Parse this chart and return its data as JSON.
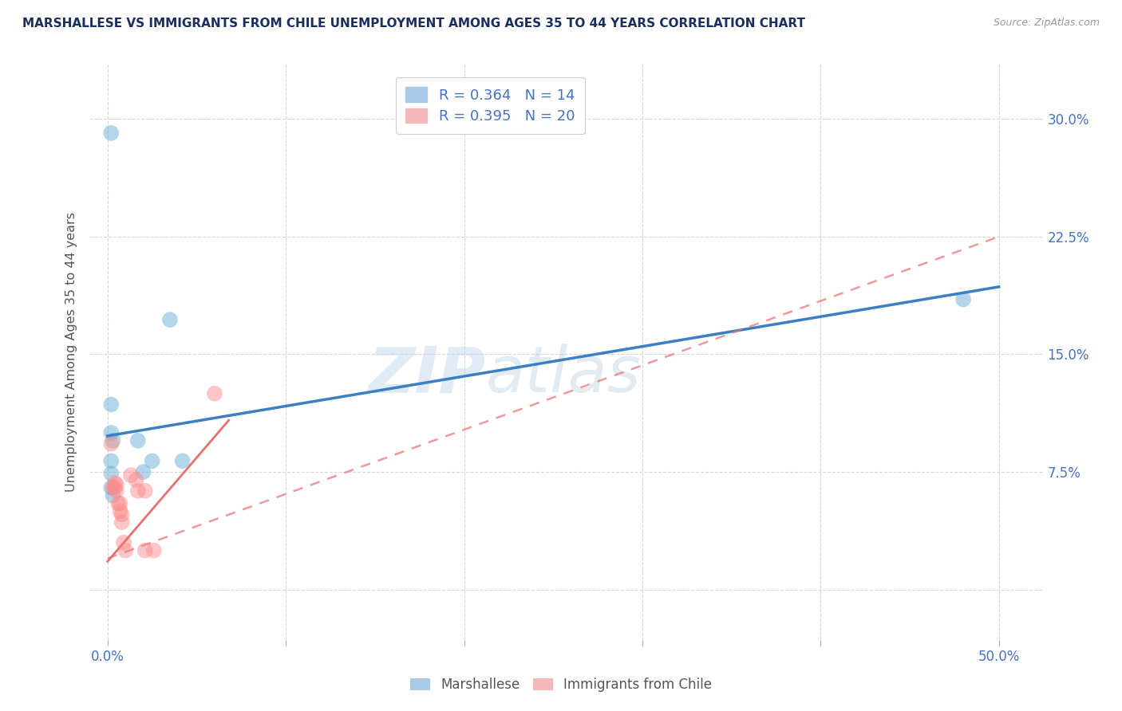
{
  "title": "MARSHALLESE VS IMMIGRANTS FROM CHILE UNEMPLOYMENT AMONG AGES 35 TO 44 YEARS CORRELATION CHART",
  "source": "Source: ZipAtlas.com",
  "ylabel": "Unemployment Among Ages 35 to 44 years",
  "xlim": [
    -0.01,
    0.525
  ],
  "ylim": [
    -0.032,
    0.335
  ],
  "ytick_vals": [
    0.0,
    0.075,
    0.15,
    0.225,
    0.3
  ],
  "ytick_labels": [
    "",
    "",
    "",
    "",
    ""
  ],
  "right_ytick_vals": [
    0.075,
    0.15,
    0.225,
    0.3
  ],
  "right_ytick_labels": [
    "7.5%",
    "15.0%",
    "22.5%",
    "30.0%"
  ],
  "xtick_vals": [
    0.0,
    0.1,
    0.2,
    0.3,
    0.4,
    0.5
  ],
  "xtick_labels": [
    "0.0%",
    "",
    "",
    "",
    "",
    "50.0%"
  ],
  "marshallese_R": 0.364,
  "marshallese_N": 14,
  "chile_R": 0.395,
  "chile_N": 20,
  "marshallese_color": "#6baed6",
  "chile_color": "#fc8d8d",
  "marshallese_scatter": [
    [
      0.002,
      0.291
    ],
    [
      0.035,
      0.172
    ],
    [
      0.002,
      0.118
    ],
    [
      0.002,
      0.1
    ],
    [
      0.003,
      0.095
    ],
    [
      0.002,
      0.082
    ],
    [
      0.002,
      0.074
    ],
    [
      0.002,
      0.065
    ],
    [
      0.003,
      0.06
    ],
    [
      0.017,
      0.095
    ],
    [
      0.02,
      0.075
    ],
    [
      0.025,
      0.082
    ],
    [
      0.042,
      0.082
    ],
    [
      0.48,
      0.185
    ]
  ],
  "chile_scatter": [
    [
      0.002,
      0.093
    ],
    [
      0.003,
      0.065
    ],
    [
      0.004,
      0.065
    ],
    [
      0.004,
      0.068
    ],
    [
      0.005,
      0.063
    ],
    [
      0.005,
      0.067
    ],
    [
      0.006,
      0.055
    ],
    [
      0.007,
      0.055
    ],
    [
      0.007,
      0.05
    ],
    [
      0.008,
      0.048
    ],
    [
      0.008,
      0.043
    ],
    [
      0.009,
      0.03
    ],
    [
      0.01,
      0.025
    ],
    [
      0.013,
      0.073
    ],
    [
      0.016,
      0.07
    ],
    [
      0.017,
      0.063
    ],
    [
      0.021,
      0.063
    ],
    [
      0.021,
      0.025
    ],
    [
      0.026,
      0.025
    ],
    [
      0.06,
      0.125
    ]
  ],
  "marshallese_line_x": [
    0.0,
    0.5
  ],
  "marshallese_line_y": [
    0.098,
    0.193
  ],
  "chile_dashed_line_x": [
    0.0,
    0.5
  ],
  "chile_dashed_line_y": [
    0.02,
    0.225
  ],
  "chile_solid_line_x": [
    0.0,
    0.068
  ],
  "chile_solid_line_y": [
    0.018,
    0.108
  ],
  "watermark_zip": "ZIP",
  "watermark_atlas": "atlas",
  "legend_labels": [
    "Marshallese",
    "Immigrants from Chile"
  ],
  "background_color": "#ffffff",
  "grid_color": "#cccccc",
  "title_color": "#1a2f5e",
  "axis_label_color": "#555555",
  "tick_color": "#4472c4"
}
